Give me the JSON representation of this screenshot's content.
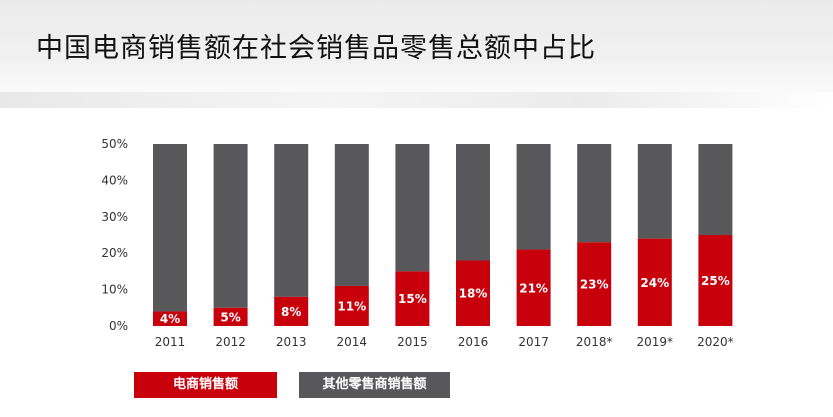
{
  "title": "中国电商销售额在社会销售品零售总额中占比",
  "colors": {
    "ecommerce": "#c8000b",
    "other": "#58585a",
    "axis_text": "#333333"
  },
  "chart_data": {
    "type": "bar",
    "stacked": true,
    "categories": [
      "2011",
      "2012",
      "2013",
      "2014",
      "2015",
      "2016",
      "2017",
      "2018*",
      "2019*",
      "2020*"
    ],
    "series": [
      {
        "name": "电商销售额",
        "values": [
          4,
          5,
          8,
          11,
          15,
          18,
          21,
          23,
          24,
          25
        ],
        "labels": [
          "4%",
          "5%",
          "8%",
          "11%",
          "15%",
          "18%",
          "21%",
          "23%",
          "24%",
          "25%"
        ]
      },
      {
        "name": "其他零售商销售额",
        "values": [
          46,
          45,
          42,
          39,
          35,
          32,
          29,
          27,
          26,
          25
        ]
      }
    ],
    "ylim": [
      0,
      50
    ],
    "yticks": [
      "0%",
      "10%",
      "20%",
      "30%",
      "40%",
      "50%"
    ],
    "grid": false,
    "legend": "bottom"
  }
}
